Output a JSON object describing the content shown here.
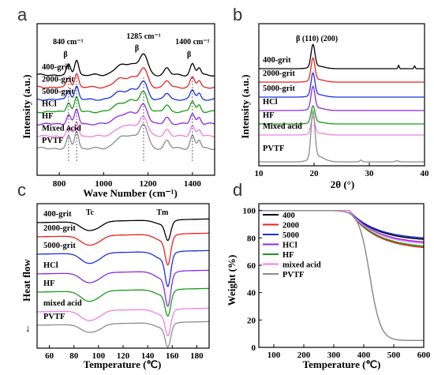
{
  "colors": {
    "black": "#000000",
    "red": "#e8231f",
    "blue": "#1b2fe0",
    "green": "#1a9b1a",
    "purple": "#8a2be2",
    "pink": "#f07ee8",
    "gray": "#8c8c8c"
  },
  "chart_data": [
    {
      "panel": "a",
      "type": "line",
      "xlabel": "Wave Number (cm⁻¹)",
      "ylabel": "Intensity (a.u.)",
      "xlim": [
        700,
        1500
      ],
      "xticks": [
        800,
        1000,
        1200,
        1400
      ],
      "tick_labels": [
        "800",
        "1000",
        "1200",
        "1400"
      ],
      "annotations": [
        {
          "text": "840 cm⁻¹",
          "x": 840
        },
        {
          "text": "1285 cm⁻¹",
          "x": 1180
        },
        {
          "text": "1400 cm⁻¹",
          "x": 1400
        },
        {
          "text": "β",
          "x": 828
        },
        {
          "text": "β",
          "x": 1150
        },
        {
          "text": "β",
          "x": 1385
        }
      ],
      "peaks": [
        {
          "x": 842,
          "w": 9,
          "h": 0.5
        },
        {
          "x": 878,
          "w": 9,
          "h": 0.75
        },
        {
          "x": 1075,
          "w": 28,
          "h": 0.45
        },
        {
          "x": 1130,
          "w": 22,
          "h": 0.5
        },
        {
          "x": 1180,
          "w": 18,
          "h": 1.0
        },
        {
          "x": 1285,
          "w": 12,
          "h": 0.35
        },
        {
          "x": 1400,
          "w": 10,
          "h": 0.55
        },
        {
          "x": 1430,
          "w": 8,
          "h": 0.35
        }
      ],
      "series": [
        {
          "name": "400-grit",
          "color": "#000000",
          "amp": 1.0
        },
        {
          "name": "2000-grit",
          "color": "#e8231f",
          "amp": 0.9
        },
        {
          "name": "5000-grit",
          "color": "#1b2fe0",
          "amp": 0.85
        },
        {
          "name": "HCl",
          "color": "#1a9b1a",
          "amp": 0.95
        },
        {
          "name": "HF",
          "color": "#8a2be2",
          "amp": 0.95
        },
        {
          "name": "Mixed acid",
          "color": "#f07ee8",
          "amp": 0.95
        },
        {
          "name": "PVTF",
          "color": "#8c8c8c",
          "amp": 1.15
        }
      ]
    },
    {
      "panel": "b",
      "type": "line",
      "xlabel": "2θ (°)",
      "ylabel": "Intensity (a.u.)",
      "xlim": [
        10,
        40
      ],
      "xticks": [
        10,
        20,
        30,
        40
      ],
      "tick_labels": [
        "10",
        "20",
        "30",
        "40"
      ],
      "annotations": [
        {
          "text": "β (110) (200)",
          "x": 19.8
        }
      ],
      "peaks": [
        {
          "x": 19.8,
          "w": 0.45,
          "h": 1.0
        }
      ],
      "series": [
        {
          "name": "400-grit",
          "color": "#000000",
          "amp": 1.0
        },
        {
          "name": "2000-grit",
          "color": "#e8231f",
          "amp": 1.0
        },
        {
          "name": "5000-grit",
          "color": "#1b2fe0",
          "amp": 1.0
        },
        {
          "name": "HCl",
          "color": "#8a2be2",
          "amp": 1.0
        },
        {
          "name": "HF",
          "color": "#1a9b1a",
          "amp": 0.75
        },
        {
          "name": "Mixed acid",
          "color": "#f07ee8",
          "amp": 0.75
        },
        {
          "name": "PVTF",
          "color": "#8c8c8c",
          "amp": 2.1
        }
      ]
    },
    {
      "panel": "c",
      "type": "line",
      "xlabel": "Temperature (℃)",
      "ylabel": "Heat flow",
      "xlim": [
        50,
        190
      ],
      "xticks": [
        60,
        80,
        100,
        120,
        140,
        160,
        180
      ],
      "tick_labels": [
        "60",
        "80",
        "100",
        "120",
        "140",
        "160",
        "180"
      ],
      "annotations": [
        {
          "text": "Tc",
          "x": 93
        },
        {
          "text": "Tm",
          "x": 152
        }
      ],
      "series": [
        {
          "name": "400-grit",
          "color": "#000000",
          "curie": 0.4,
          "melt": 1.0
        },
        {
          "name": "2000-grit",
          "color": "#e8231f",
          "curie": 0.45,
          "melt": 1.5
        },
        {
          "name": "5000-grit",
          "color": "#1b2fe0",
          "curie": 0.55,
          "melt": 1.7
        },
        {
          "name": "HCl",
          "color": "#8a2be2",
          "curie": 0.5,
          "melt": 1.7
        },
        {
          "name": "HF",
          "color": "#1a9b1a",
          "curie": 0.55,
          "melt": 1.3
        },
        {
          "name": "mixed acid",
          "color": "#f07ee8",
          "curie": 0.5,
          "melt": 1.3
        },
        {
          "name": "PVTF",
          "color": "#8c8c8c",
          "curie": 0.3,
          "melt": 1.2
        }
      ]
    },
    {
      "panel": "d",
      "type": "line",
      "xlabel": "Temperature (℃)",
      "ylabel": "Weight (%)",
      "xlim": [
        50,
        600
      ],
      "ylim": [
        0,
        105
      ],
      "xticks": [
        100,
        200,
        300,
        400,
        500,
        600
      ],
      "tick_labels": [
        "100",
        "200",
        "300",
        "400",
        "500",
        "600"
      ],
      "yticks": [
        0,
        20,
        40,
        60,
        80,
        100
      ],
      "ytick_labels": [
        "0",
        "20",
        "40",
        "60",
        "80",
        "100"
      ],
      "legend": "top-left",
      "series": [
        {
          "name": "400",
          "color": "#000000",
          "final": 79,
          "onset": 415,
          "width": 45
        },
        {
          "name": "2000",
          "color": "#e8231f",
          "final": 73,
          "onset": 405,
          "width": 40
        },
        {
          "name": "5000",
          "color": "#1b2fe0",
          "final": 80,
          "onset": 410,
          "width": 45
        },
        {
          "name": "HCl",
          "color": "#8a2be2",
          "final": 77,
          "onset": 405,
          "width": 42
        },
        {
          "name": "HF",
          "color": "#1a9b1a",
          "final": 74,
          "onset": 400,
          "width": 40
        },
        {
          "name": "mixed acid",
          "color": "#f07ee8",
          "final": 76,
          "onset": 405,
          "width": 42
        },
        {
          "name": "PVTF",
          "color": "#8c8c8c",
          "final": 5,
          "onset": 420,
          "width": 18
        }
      ]
    }
  ],
  "panel_letters": [
    "a",
    "b",
    "c",
    "d"
  ]
}
